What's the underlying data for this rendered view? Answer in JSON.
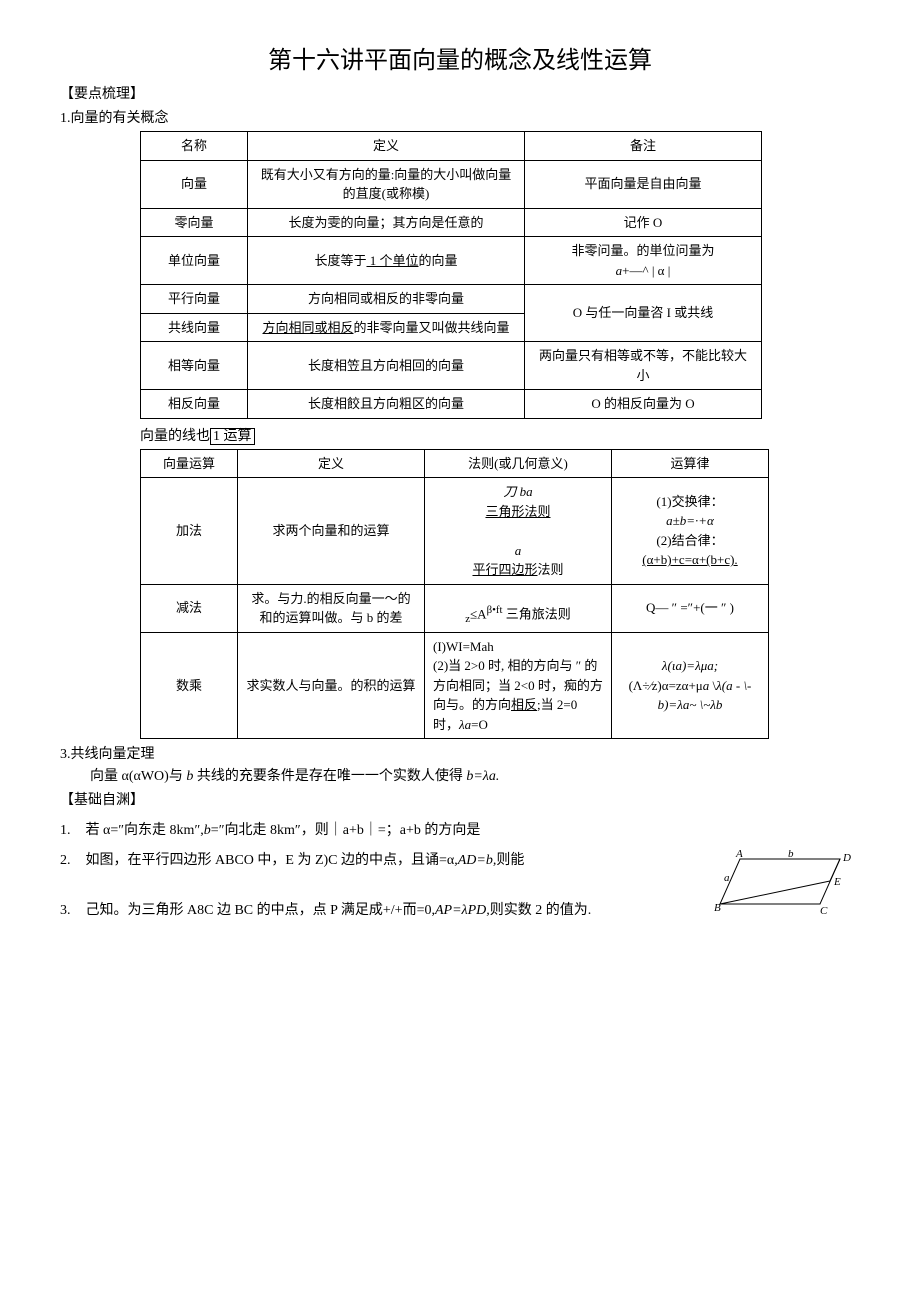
{
  "title": "第十六讲平面向量的概念及线性运算",
  "section1_label": "【要点梳理】",
  "sub1": "1.向量的有关概念",
  "table1": {
    "header": [
      "名称",
      "定义",
      "备注"
    ],
    "rows": [
      [
        "向量",
        "既有大小又有方向的量:向量的大小叫做向量的苴度(或称模)",
        "平面向量是自由向量"
      ],
      [
        "零向量",
        "长度为雯的向量；其方向是任意的",
        "记作 O"
      ],
      [
        "单位向量",
        "长度等于<span class='underline'> 1 个单位</span>的向量",
        "非零问量。的単位问量为<br><span class='italic'>a</span>+—^ | α |"
      ],
      [
        "平行向量",
        "方向相同或相反的非零向量",
        ""
      ],
      [
        "共线向量",
        "<span class='underline'>方向相同或相反</span>的非零向量又叫做共线向量",
        "O 与任一向量咨 I 或共线"
      ],
      [
        "相等向量",
        "长度相笠且方向相回的向量",
        "两向量只有相等或不等，不能比较大小"
      ],
      [
        "相反向量",
        "长度相餃且方向粗区的向量",
        "O 的相反向量为 O"
      ]
    ]
  },
  "sub2_pre": "向量的线也",
  "sub2_post": "1 运算",
  "table2": {
    "header": [
      "向量运算",
      "定义",
      "法则(或几何意义)",
      "运算律"
    ],
    "rows": [
      [
        "加法",
        "求两个向量和的运算",
        "<span class='italic'>刀 ba</span><br><span class='underline'>三角形法则</span><br><br><span class='italic'>a</span><br><span class='underline'>平行四边形</span>法则",
        "(1)交换律：<br><span class='italic'>a±b=·+α</span><br>(2)结合律：<br><span class='underline'>(α+b)+c=α+(b+c).</span>"
      ],
      [
        "减法",
        "求。与力.的相反向量一～的和的运算叫做。与 b 的差",
        "<sub>z</sub>≤A<sup>β•ft</sup> 三角旅法则",
        "Q— ″ =″+(一 ″ )"
      ],
      [
        "数乘",
        "求实数人与向量。的积的运算",
        "(I)WI=Mah<br>(2)当 2>0 时, 相的方向与 ″ 的方向相同；当 2<0 时，痴的方向与。的方向<span class='underline'>相反</span>;当 2=0 时，<span class='italic'>λa</span>=O",
        "<span class='italic'>λ(ιa)=λμa;</span><br>(Λ÷∕z)α=zα+μ<span class='italic'>a</span> \\<span class='italic'>λ(a - \\-b)=λa~ \\~λb</span>"
      ]
    ]
  },
  "sub3": "3.共线向量定理",
  "theorem_text": "向量 α(αWO)与 <span class='italic'>b</span> 共线的充要条件是存在唯一一个实数人使得 <span class='italic'>b=λa.</span>",
  "section2_label": "【基础自渊】",
  "q1_num": "1.",
  "q1_text": "若 α=″向东走 8km″,<span class='italic'>b</span>=″向北走 8km″，则｜a+b｜=；a+b 的方向是",
  "q2_num": "2.",
  "q2_text": "如图，在平行四边形 ABCO 中，E 为 Z)C 边的中点，且诵=α,<span class='italic'>AD=b,</span>则能",
  "q3_num": "3.",
  "q3_text": "己知。为三角形 A8C 边 BC 的中点，点 P 满足成+/+而=0,<span class='italic'>AP=λPD,</span>则实数 2 的值为.",
  "svg_labels": {
    "A": "A",
    "B": "B",
    "C": "C",
    "D": "D",
    "E": "E",
    "a": "a",
    "b": "b"
  }
}
